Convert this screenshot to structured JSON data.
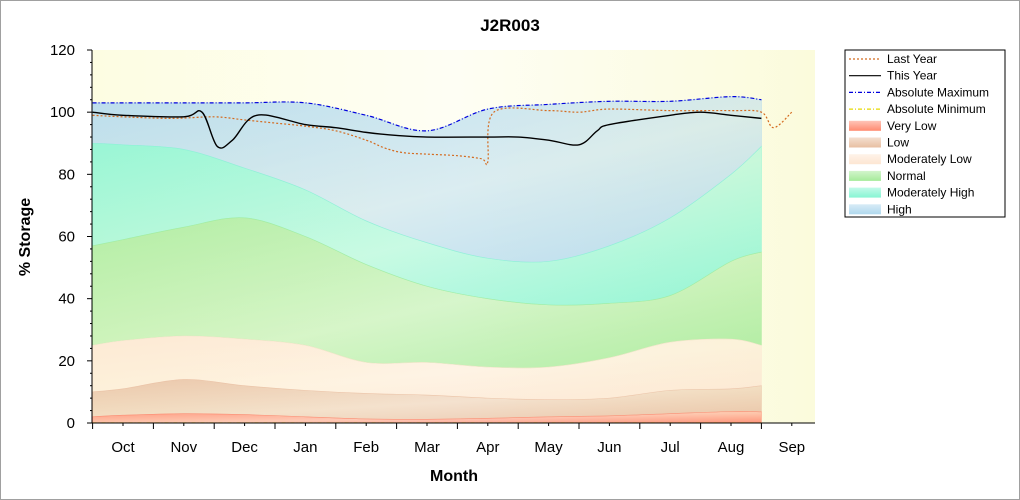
{
  "chart_data": {
    "type": "area",
    "title": "J2R003",
    "xlabel": "Month",
    "ylabel": "% Storage",
    "ylim": [
      0,
      120
    ],
    "yticks": [
      0,
      20,
      40,
      60,
      80,
      100,
      120
    ],
    "categories": [
      "Oct",
      "Nov",
      "Dec",
      "Jan",
      "Feb",
      "Mar",
      "Apr",
      "May",
      "Jun",
      "Jul",
      "Aug",
      "Sep"
    ],
    "grid": false,
    "legend_position": "right",
    "bands": [
      {
        "name": "Very Low",
        "color": "#ff8a70",
        "x": [
          -0.5,
          0,
          1,
          2,
          3,
          4,
          5,
          6,
          7,
          8,
          9,
          10,
          10.5
        ],
        "upper": [
          2,
          2.5,
          3,
          2.7,
          2,
          1.3,
          1.2,
          1.5,
          2,
          2.3,
          3,
          3.7,
          3.6
        ]
      },
      {
        "name": "Low",
        "color": "#e8bfa2",
        "x": [
          -0.5,
          0,
          1,
          2,
          3,
          4,
          5,
          6,
          7,
          8,
          9,
          10,
          10.5
        ],
        "upper": [
          10,
          11,
          14,
          12,
          10.5,
          9.5,
          9,
          8,
          7.5,
          8,
          10.5,
          11,
          12
        ]
      },
      {
        "name": "Moderately Low",
        "color": "#fde6d2",
        "x": [
          -0.5,
          0,
          1,
          2,
          3,
          4,
          5,
          6,
          7,
          8,
          9,
          10,
          10.5
        ],
        "upper": [
          25,
          26.5,
          28,
          27,
          25,
          19.5,
          19.5,
          18,
          18,
          21,
          26,
          27,
          25
        ]
      },
      {
        "name": "Normal",
        "color": "#a6eb9a",
        "x": [
          -0.5,
          0,
          1,
          2,
          3,
          4,
          5,
          6,
          7,
          8,
          9,
          10,
          10.5
        ],
        "upper": [
          57,
          59,
          63,
          66,
          60,
          51,
          44,
          40,
          38,
          38.5,
          41,
          52,
          55
        ]
      },
      {
        "name": "Moderately High",
        "color": "#88f5d3",
        "x": [
          -0.5,
          0,
          1,
          2,
          3,
          4,
          5,
          6,
          7,
          8,
          9,
          10,
          10.5
        ],
        "upper": [
          90,
          89.5,
          88,
          82,
          75,
          65,
          58,
          53,
          52,
          57,
          66,
          80,
          89
        ]
      },
      {
        "name": "High",
        "color": "#b0d8ee",
        "x": [
          -0.5,
          0,
          1,
          2,
          3,
          4,
          5,
          6,
          7,
          8,
          9,
          10,
          10.5
        ],
        "upper": [
          103,
          103,
          103,
          103,
          103,
          99,
          94,
          101,
          102.5,
          103.5,
          103.5,
          105,
          104
        ]
      }
    ],
    "series": [
      {
        "name": "Last Year",
        "color": "#d46a1e",
        "style": "dotted",
        "x": [
          -0.5,
          0,
          0.8,
          1.5,
          2,
          2.5,
          3,
          3.5,
          4,
          4.3,
          4.6,
          5,
          5.5,
          5.9,
          6.0,
          6.1,
          7,
          7.5,
          8,
          9,
          10,
          10.5,
          10.7,
          11
        ],
        "y": [
          99,
          98.5,
          98,
          98.5,
          97.5,
          96.5,
          95.5,
          94,
          91,
          88.5,
          87,
          86.5,
          86,
          85,
          84,
          100,
          100.5,
          100,
          101,
          100.5,
          100.5,
          100,
          95,
          100
        ]
      },
      {
        "name": "This Year",
        "color": "#000000",
        "style": "solid",
        "x": [
          -0.5,
          0,
          1,
          1.3,
          1.55,
          1.8,
          2.2,
          3,
          3.5,
          4,
          4.5,
          5,
          6,
          6.5,
          7,
          7.5,
          7.8,
          8,
          9,
          9.5,
          10,
          10.5
        ],
        "y": [
          100,
          99,
          98.5,
          100,
          89,
          91,
          99,
          96,
          95,
          93.5,
          92.5,
          92,
          92,
          92,
          91,
          89.5,
          94,
          96,
          99,
          100,
          99,
          98
        ]
      },
      {
        "name": "Absolute Maximum",
        "color": "#0000dd",
        "style": "dash-dot",
        "x": [
          -0.5,
          0,
          1,
          2,
          3,
          4,
          5,
          6,
          7,
          8,
          9,
          10,
          10.5
        ],
        "y": [
          103,
          103,
          103,
          103,
          103,
          99,
          94,
          101,
          102.5,
          103.5,
          103.5,
          105,
          104
        ]
      },
      {
        "name": "Absolute Minimum",
        "color": "#e6d800",
        "style": "dash-dot",
        "x": [
          -0.5,
          10.5
        ],
        "y": [
          0,
          0
        ]
      }
    ],
    "legend": [
      "Last Year",
      "This Year",
      "Absolute Maximum",
      "Absolute Minimum",
      "Very Low",
      "Low",
      "Moderately Low",
      "Normal",
      "Moderately High",
      "High"
    ]
  }
}
